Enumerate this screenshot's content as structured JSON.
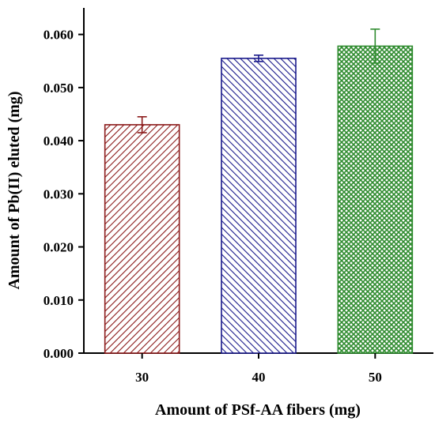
{
  "chart_data": {
    "type": "bar",
    "title": "",
    "xlabel": "Amount of PSf-AA fibers (mg)",
    "ylabel": "Amount of Pb(II) eluted (mg)",
    "categories": [
      "30",
      "40",
      "50"
    ],
    "values": [
      0.043,
      0.0555,
      0.0578
    ],
    "errors": [
      0.0015,
      0.0006,
      0.0032
    ],
    "ylim": [
      0.0,
      0.065
    ],
    "yticks": [
      "0.000",
      "0.010",
      "0.020",
      "0.030",
      "0.040",
      "0.050",
      "0.060"
    ],
    "grid": false,
    "bar_colors": [
      "#8b1a1a",
      "#1a1a8b",
      "#2e8b2e"
    ],
    "bar_patterns": [
      "diagonal-hatch",
      "diagonal-hatch",
      "crosshatch"
    ]
  }
}
